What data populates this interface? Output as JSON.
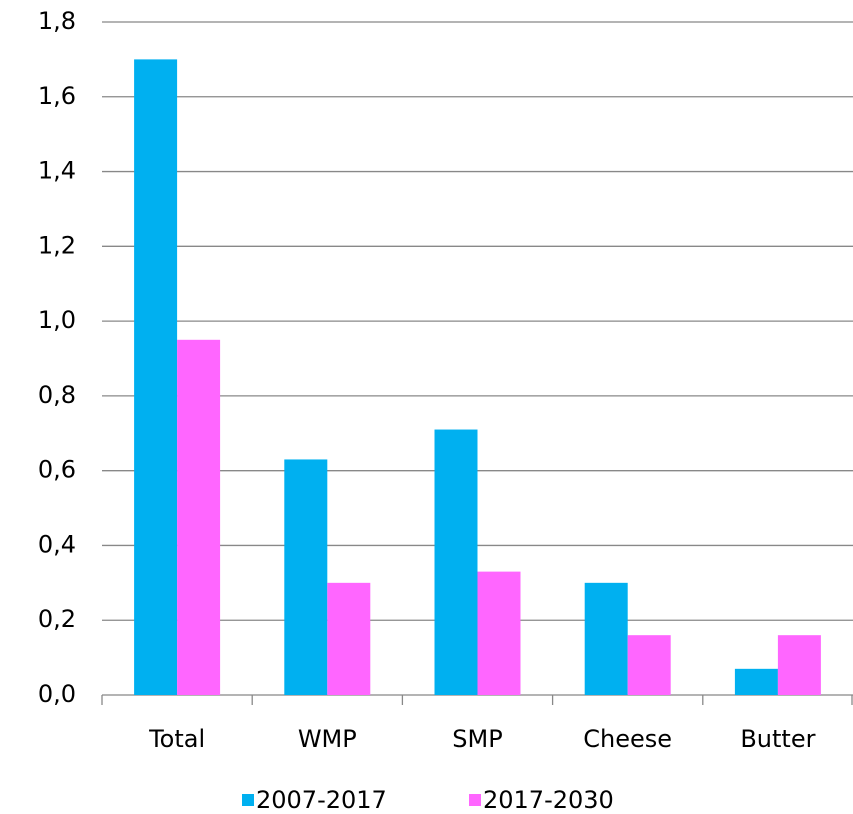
{
  "chart_data": {
    "type": "bar",
    "categories": [
      "Total",
      "WMP",
      "SMP",
      "Cheese",
      "Butter"
    ],
    "series": [
      {
        "name": "2007-2017",
        "color": "#00b0f0",
        "values": [
          1.7,
          0.63,
          0.71,
          0.3,
          0.07
        ]
      },
      {
        "name": "2017-2030",
        "color": "#ff66ff",
        "values": [
          0.95,
          0.3,
          0.33,
          0.16,
          0.16
        ]
      }
    ],
    "ylim": [
      0,
      1.8
    ],
    "yticks": [
      {
        "value": 0,
        "label": "0,0"
      },
      {
        "value": 0.2,
        "label": "0,2"
      },
      {
        "value": 0.4,
        "label": "0,4"
      },
      {
        "value": 0.6,
        "label": "0,6"
      },
      {
        "value": 0.8,
        "label": "0,8"
      },
      {
        "value": 1.0,
        "label": "1,0"
      },
      {
        "value": 1.2,
        "label": "1,2"
      },
      {
        "value": 1.4,
        "label": "1,4"
      },
      {
        "value": 1.6,
        "label": "1,6"
      },
      {
        "value": 1.8,
        "label": "1,8"
      }
    ],
    "grid": true,
    "legend": "bottom"
  }
}
